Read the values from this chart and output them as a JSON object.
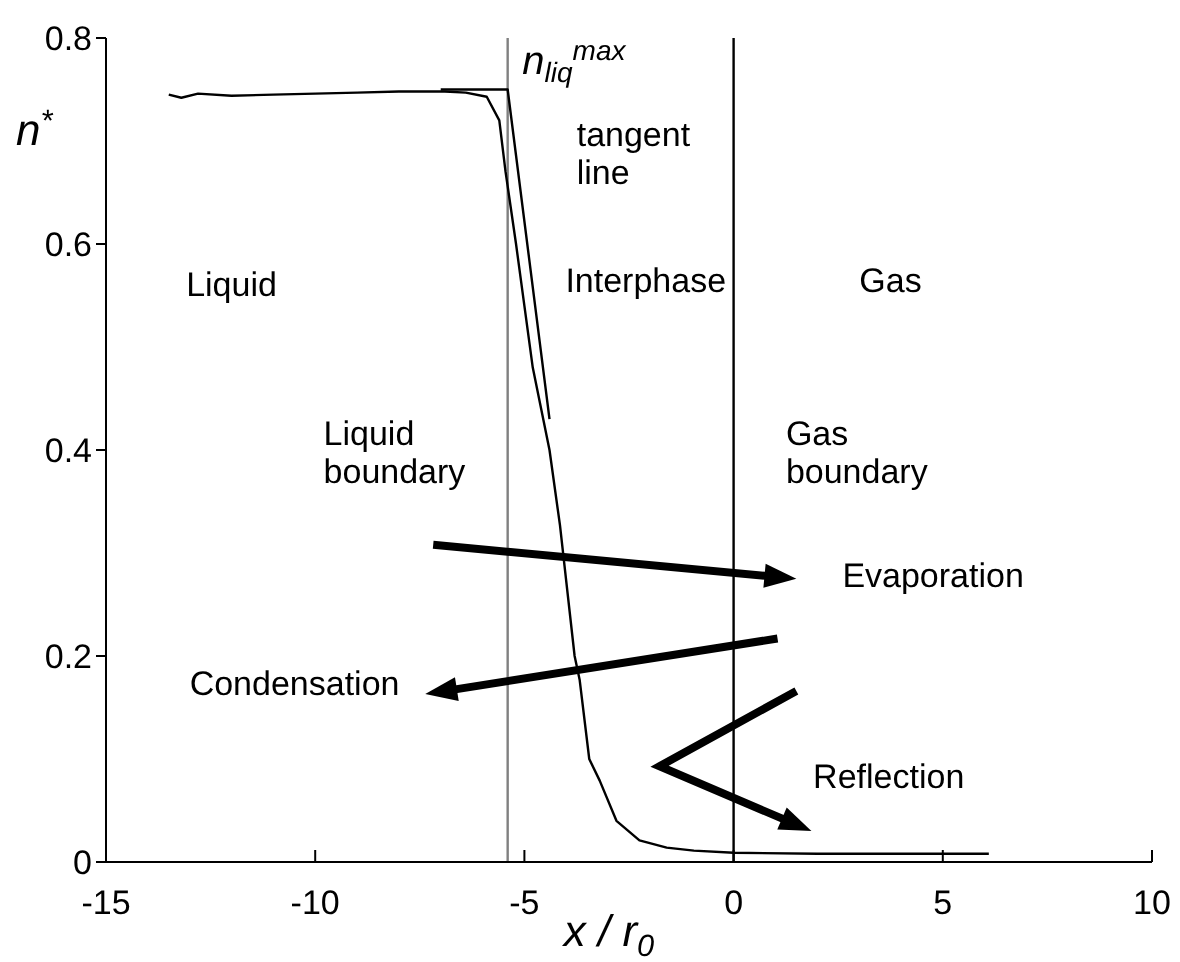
{
  "chart_data": {
    "type": "line",
    "xlabel": "x / r$_{0}$",
    "ylabel": "n$^{*}$",
    "xlim": [
      -15,
      10
    ],
    "xticks": [
      -15,
      -10,
      -5,
      0,
      5,
      10
    ],
    "ylim": [
      0,
      0.8
    ],
    "yticks": [
      0,
      0.2,
      0.4,
      0.6,
      0.8
    ],
    "grid": false,
    "marker": "none",
    "line_style": "solid",
    "series": [
      {
        "color": "#000000",
        "x": [
          -13.5,
          -13.2,
          -12.8,
          -12,
          -11,
          -10,
          -9,
          -8,
          -7.5,
          -6.9,
          -6.4,
          -5.9,
          -5.6,
          -5.45,
          -5.2,
          -5.0,
          -4.8,
          -4.6,
          -4.4,
          -4.15,
          -3.8,
          -3.68,
          -3.45,
          -3.2,
          -2.8,
          -2.25,
          -1.6,
          -0.95,
          0,
          2,
          4,
          6.1
        ],
        "values": [
          0.745,
          0.742,
          0.746,
          0.744,
          0.745,
          0.746,
          0.747,
          0.748,
          0.748,
          0.748,
          0.747,
          0.743,
          0.72,
          0.67,
          0.6,
          0.54,
          0.48,
          0.44,
          0.4,
          0.327,
          0.2,
          0.177,
          0.1,
          0.079,
          0.04,
          0.021,
          0.014,
          0.011,
          0.009,
          0.008,
          0.008,
          0.008
        ]
      },
      {
        "color": "#000000",
        "x": [
          -7,
          -5.4,
          -4.4
        ],
        "values": [
          0.75,
          0.75,
          0.43
        ]
      }
    ],
    "ref_lines": [
      {
        "axis": "x",
        "value": -5.4,
        "color": "#808080"
      },
      {
        "axis": "x",
        "value": 0,
        "color": "#000000"
      }
    ],
    "annotations": [
      "n$_{liq}$$^{max}$",
      "tangent line",
      "Liquid",
      "Interphase",
      "Gas",
      "Liquid boundary",
      "Gas boundary",
      "Evaporation",
      "Condensation",
      "Reflection"
    ]
  }
}
